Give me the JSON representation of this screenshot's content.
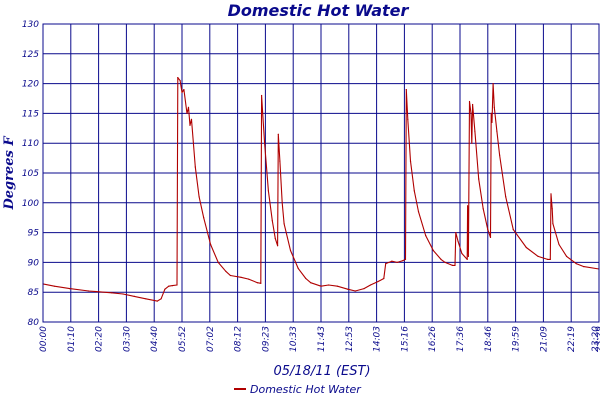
{
  "chart_data": {
    "type": "line",
    "title": "Domestic Hot Water",
    "ylabel": "Degrees F",
    "xlabel": "05/18/11 (EST)",
    "ylim": [
      80,
      130
    ],
    "yticks": [
      80,
      85,
      90,
      95,
      100,
      105,
      110,
      115,
      120,
      125,
      130
    ],
    "xlim_minutes": [
      0,
      1460
    ],
    "xticks": [
      "00:00",
      "01:10",
      "02:20",
      "03:30",
      "04:40",
      "05:52",
      "07:02",
      "08:12",
      "09:23",
      "10:33",
      "11:43",
      "12:53",
      "14:03",
      "15:16",
      "16:26",
      "17:36",
      "18:46",
      "19:59",
      "21:09",
      "22:19",
      "23:29",
      "23:20"
    ],
    "grid": true,
    "legend_position": "bottom",
    "colors": {
      "series": "#b00000",
      "axis": "#0a0a8c",
      "grid": "#0a0a8c"
    },
    "series": [
      {
        "name": "Domestic Hot Water",
        "points": [
          [
            "00:00",
            86.4
          ],
          [
            "00:30",
            86.0
          ],
          [
            "01:10",
            85.6
          ],
          [
            "02:00",
            85.2
          ],
          [
            "02:20",
            85.1
          ],
          [
            "03:00",
            84.9
          ],
          [
            "03:30",
            84.7
          ],
          [
            "04:00",
            84.3
          ],
          [
            "04:30",
            83.9
          ],
          [
            "05:00",
            83.5
          ],
          [
            "05:10",
            83.9
          ],
          [
            "05:20",
            85.5
          ],
          [
            "05:30",
            86.0
          ],
          [
            "05:40",
            86.1
          ],
          [
            "05:52",
            86.2
          ],
          [
            "05:54",
            121.0
          ],
          [
            "06:00",
            120.5
          ],
          [
            "06:05",
            118.5
          ],
          [
            "06:10",
            119.0
          ],
          [
            "06:18",
            115.0
          ],
          [
            "06:22",
            116.0
          ],
          [
            "06:26",
            113.0
          ],
          [
            "06:30",
            114.0
          ],
          [
            "06:40",
            106.0
          ],
          [
            "06:50",
            101.0
          ],
          [
            "07:02",
            97.5
          ],
          [
            "07:20",
            93.0
          ],
          [
            "07:40",
            90.0
          ],
          [
            "08:00",
            88.5
          ],
          [
            "08:12",
            87.8
          ],
          [
            "08:40",
            87.5
          ],
          [
            "09:00",
            87.2
          ],
          [
            "09:23",
            86.6
          ],
          [
            "09:32",
            86.5
          ],
          [
            "09:34",
            118.0
          ],
          [
            "09:37",
            115.0
          ],
          [
            "09:42",
            110.0
          ],
          [
            "09:52",
            102.0
          ],
          [
            "10:02",
            97.0
          ],
          [
            "10:10",
            94.0
          ],
          [
            "10:16",
            92.8
          ],
          [
            "10:18",
            111.5
          ],
          [
            "10:22",
            107.0
          ],
          [
            "10:28",
            100.0
          ],
          [
            "10:33",
            96.5
          ],
          [
            "10:50",
            92.0
          ],
          [
            "11:10",
            89.0
          ],
          [
            "11:30",
            87.3
          ],
          [
            "11:43",
            86.6
          ],
          [
            "12:10",
            86.0
          ],
          [
            "12:30",
            86.2
          ],
          [
            "12:53",
            86.0
          ],
          [
            "13:20",
            85.5
          ],
          [
            "13:40",
            85.2
          ],
          [
            "14:03",
            85.6
          ],
          [
            "14:20",
            86.2
          ],
          [
            "14:40",
            86.8
          ],
          [
            "14:55",
            87.3
          ],
          [
            "15:00",
            89.8
          ],
          [
            "15:16",
            90.2
          ],
          [
            "15:30",
            90.0
          ],
          [
            "15:45",
            90.3
          ],
          [
            "15:52",
            90.5
          ],
          [
            "15:54",
            119.0
          ],
          [
            "15:58",
            114.0
          ],
          [
            "16:05",
            107.0
          ],
          [
            "16:15",
            102.0
          ],
          [
            "16:26",
            98.5
          ],
          [
            "16:45",
            94.5
          ],
          [
            "17:05",
            92.0
          ],
          [
            "17:25",
            90.5
          ],
          [
            "17:36",
            90.0
          ],
          [
            "17:55",
            89.5
          ],
          [
            "18:02",
            89.5
          ],
          [
            "18:04",
            95.0
          ],
          [
            "18:10",
            93.5
          ],
          [
            "18:20",
            91.5
          ],
          [
            "18:34",
            90.5
          ],
          [
            "18:35",
            99.5
          ],
          [
            "18:37",
            91.0
          ],
          [
            "18:40",
            117.0
          ],
          [
            "18:44",
            115.0
          ],
          [
            "18:46",
            110.0
          ],
          [
            "18:48",
            116.5
          ],
          [
            "18:54",
            112.0
          ],
          [
            "19:04",
            104.0
          ],
          [
            "19:16",
            99.0
          ],
          [
            "19:28",
            95.5
          ],
          [
            "19:35",
            94.2
          ],
          [
            "19:37",
            115.0
          ],
          [
            "19:39",
            113.5
          ],
          [
            "19:42",
            120.0
          ],
          [
            "19:45",
            116.0
          ],
          [
            "19:52",
            112.0
          ],
          [
            "19:59",
            108.0
          ],
          [
            "20:15",
            101.0
          ],
          [
            "20:35",
            95.5
          ],
          [
            "21:09",
            92.5
          ],
          [
            "21:40",
            91.0
          ],
          [
            "22:05",
            90.5
          ],
          [
            "22:12",
            90.5
          ],
          [
            "22:14",
            101.5
          ],
          [
            "22:17",
            99.0
          ],
          [
            "22:19",
            96.5
          ],
          [
            "22:35",
            93.0
          ],
          [
            "22:55",
            91.0
          ],
          [
            "23:20",
            89.8
          ],
          [
            "23:40",
            89.3
          ],
          [
            "24:20",
            88.9
          ]
        ]
      }
    ]
  }
}
